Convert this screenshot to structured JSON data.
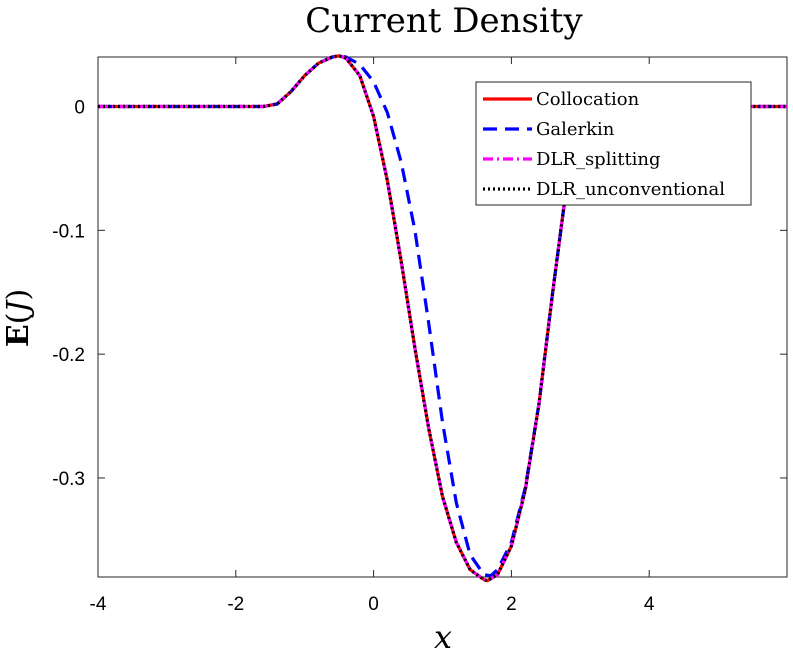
{
  "chart_data": {
    "type": "line",
    "title": "Current Density",
    "xlabel": "x",
    "ylabel": "E(J)",
    "xlim": [
      -4,
      6
    ],
    "ylim": [
      -0.38,
      0.04
    ],
    "xticks": [
      "-4",
      "-2",
      "0",
      "2",
      "4"
    ],
    "xtick_values": [
      -4,
      -2,
      0,
      2,
      4
    ],
    "yticks": [
      "0",
      "-0.1",
      "-0.2",
      "-0.3"
    ],
    "ytick_values": [
      0,
      -0.1,
      -0.2,
      -0.3
    ],
    "grid": false,
    "legend": "top-right",
    "series": [
      {
        "name": "Collocation",
        "color": "#ff0000",
        "dash": "solid",
        "x": [
          -4,
          -2,
          -1.6,
          -1.4,
          -1.2,
          -1.0,
          -0.8,
          -0.6,
          -0.5,
          -0.4,
          -0.2,
          0.0,
          0.2,
          0.4,
          0.6,
          0.8,
          1.0,
          1.2,
          1.4,
          1.6,
          1.65,
          1.8,
          2.0,
          2.2,
          2.4,
          2.6,
          2.8,
          2.95,
          3.1,
          3.3,
          4,
          6
        ],
        "y": [
          0,
          0,
          0,
          0.002,
          0.012,
          0.025,
          0.035,
          0.04,
          0.041,
          0.039,
          0.025,
          -0.008,
          -0.06,
          -0.125,
          -0.195,
          -0.26,
          -0.315,
          -0.352,
          -0.374,
          -0.382,
          -0.383,
          -0.378,
          -0.355,
          -0.31,
          -0.24,
          -0.15,
          -0.065,
          -0.015,
          0.0,
          0.001,
          0,
          0
        ]
      },
      {
        "name": "Galerkin",
        "color": "#0000ff",
        "dash": "dashed",
        "x": [
          -4,
          -2,
          -1.6,
          -1.4,
          -1.2,
          -1.0,
          -0.8,
          -0.6,
          -0.5,
          -0.4,
          -0.2,
          0.0,
          0.2,
          0.4,
          0.6,
          0.8,
          1.0,
          1.2,
          1.4,
          1.6,
          1.7,
          1.8,
          2.0,
          2.2,
          2.4,
          2.6,
          2.8,
          2.95,
          3.1,
          3.3,
          4,
          6
        ],
        "y": [
          0,
          0,
          0,
          0.002,
          0.012,
          0.025,
          0.035,
          0.04,
          0.041,
          0.04,
          0.034,
          0.02,
          -0.005,
          -0.045,
          -0.1,
          -0.175,
          -0.255,
          -0.32,
          -0.362,
          -0.378,
          -0.379,
          -0.374,
          -0.352,
          -0.308,
          -0.24,
          -0.15,
          -0.065,
          -0.015,
          0.0,
          0.001,
          0,
          0
        ]
      },
      {
        "name": "DLR_splitting",
        "color": "#ff00ff",
        "dash": "dashdot",
        "x": [
          -4,
          -2,
          -1.6,
          -1.4,
          -1.2,
          -1.0,
          -0.8,
          -0.6,
          -0.5,
          -0.4,
          -0.2,
          0.0,
          0.2,
          0.4,
          0.6,
          0.8,
          1.0,
          1.2,
          1.4,
          1.6,
          1.65,
          1.8,
          2.0,
          2.2,
          2.4,
          2.6,
          2.8,
          2.95,
          3.1,
          3.3,
          4,
          6
        ],
        "y": [
          0,
          0,
          0,
          0.002,
          0.012,
          0.025,
          0.035,
          0.04,
          0.041,
          0.039,
          0.025,
          -0.008,
          -0.06,
          -0.125,
          -0.195,
          -0.26,
          -0.315,
          -0.352,
          -0.374,
          -0.382,
          -0.383,
          -0.378,
          -0.355,
          -0.31,
          -0.24,
          -0.15,
          -0.065,
          -0.015,
          0.0,
          0.001,
          0,
          0
        ]
      },
      {
        "name": "DLR_unconventional",
        "color": "#000000",
        "dash": "dotted",
        "x": [
          -4,
          -2,
          -1.6,
          -1.4,
          -1.2,
          -1.0,
          -0.8,
          -0.6,
          -0.5,
          -0.4,
          -0.2,
          0.0,
          0.2,
          0.4,
          0.6,
          0.8,
          1.0,
          1.2,
          1.4,
          1.6,
          1.65,
          1.8,
          2.0,
          2.2,
          2.4,
          2.6,
          2.8,
          2.95,
          3.1,
          3.3,
          4,
          6
        ],
        "y": [
          0,
          0,
          0,
          0.002,
          0.012,
          0.025,
          0.035,
          0.04,
          0.041,
          0.039,
          0.025,
          -0.008,
          -0.06,
          -0.125,
          -0.195,
          -0.26,
          -0.315,
          -0.352,
          -0.374,
          -0.382,
          -0.383,
          -0.378,
          -0.355,
          -0.31,
          -0.24,
          -0.15,
          -0.065,
          -0.015,
          0.0,
          0.001,
          0,
          0
        ]
      }
    ]
  }
}
